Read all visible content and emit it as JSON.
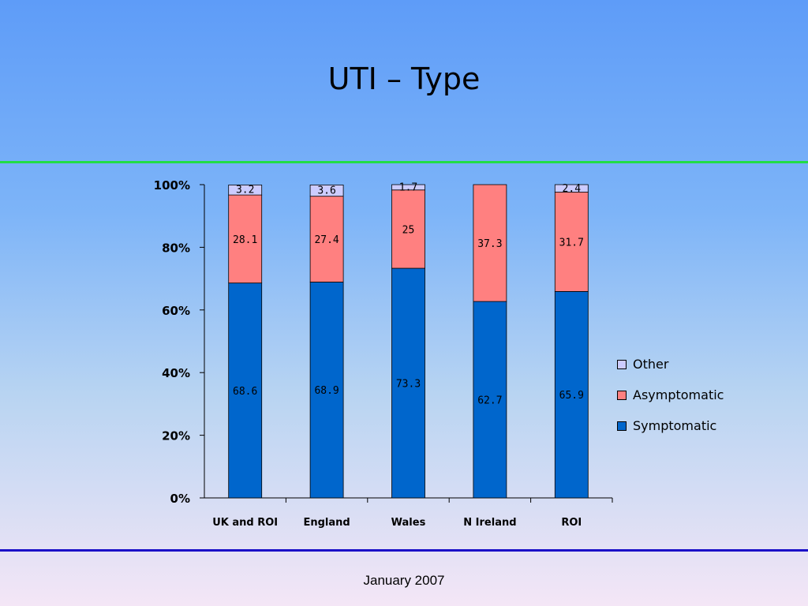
{
  "slide": {
    "title": "UTI – Type",
    "footer": "January 2007"
  },
  "colors": {
    "Symptomatic": "#0066cc",
    "Asymptomatic": "#ff8080",
    "Other": "#ccccff"
  },
  "chart_data": {
    "type": "bar",
    "stacked": true,
    "percent_stacked": true,
    "categories": [
      "UK and ROI",
      "England",
      "Wales",
      "N Ireland",
      "ROI"
    ],
    "series": [
      {
        "name": "Symptomatic",
        "values": [
          68.6,
          68.9,
          73.3,
          62.7,
          65.9
        ]
      },
      {
        "name": "Asymptomatic",
        "values": [
          28.1,
          27.4,
          25,
          37.3,
          31.7
        ]
      },
      {
        "name": "Other",
        "values": [
          3.2,
          3.6,
          1.7,
          0,
          2.4
        ]
      }
    ],
    "yticks": [
      "0%",
      "20%",
      "40%",
      "60%",
      "80%",
      "100%"
    ],
    "ylim": [
      0,
      100
    ],
    "legend_entries": [
      "Other",
      "Asymptomatic",
      "Symptomatic"
    ],
    "legend_position": "right",
    "grid": false
  }
}
